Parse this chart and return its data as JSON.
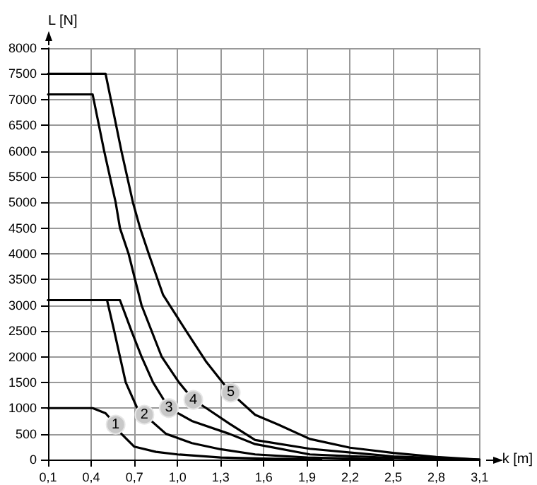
{
  "chart_data": {
    "type": "line",
    "xlabel": "k [m]",
    "ylabel": "L [N]",
    "xlim": [
      0.1,
      3.1
    ],
    "ylim": [
      0,
      8000
    ],
    "xticks": [
      {
        "value": 0.1,
        "label": "0,1"
      },
      {
        "value": 0.4,
        "label": "0,4"
      },
      {
        "value": 0.7,
        "label": "0,7"
      },
      {
        "value": 1.0,
        "label": "1,0"
      },
      {
        "value": 1.3,
        "label": "1,3"
      },
      {
        "value": 1.6,
        "label": "1,6"
      },
      {
        "value": 1.9,
        "label": "1,9"
      },
      {
        "value": 2.2,
        "label": "2,2"
      },
      {
        "value": 2.5,
        "label": "2,5"
      },
      {
        "value": 2.8,
        "label": "2,8"
      },
      {
        "value": 3.1,
        "label": "3,1"
      }
    ],
    "yticks": [
      0,
      500,
      1000,
      1500,
      2000,
      2500,
      3000,
      3500,
      4000,
      4500,
      5000,
      5500,
      6000,
      6500,
      7000,
      7500,
      8000
    ],
    "grid": true,
    "marker": "none",
    "line_style": "solid",
    "series": [
      {
        "color": "#000000",
        "x": [
          0.1,
          0.41,
          0.5,
          0.57,
          0.61,
          0.7,
          0.85,
          1.0,
          1.3,
          1.6,
          2.0
        ],
        "values": [
          1000,
          1000,
          900,
          680,
          500,
          250,
          150,
          100,
          40,
          20,
          0
        ]
      },
      {
        "color": "#000000",
        "x": [
          0.1,
          0.51,
          0.56,
          0.6,
          0.64,
          0.72,
          0.77,
          0.92,
          1.1,
          1.3,
          1.54,
          1.9,
          2.2,
          2.5
        ],
        "values": [
          3100,
          3100,
          2500,
          2000,
          1500,
          1000,
          870,
          500,
          320,
          200,
          100,
          40,
          20,
          0
        ]
      },
      {
        "color": "#000000",
        "x": [
          0.1,
          0.6,
          0.68,
          0.75,
          0.83,
          0.94,
          1.1,
          1.36,
          1.54,
          1.92,
          2.5,
          2.9
        ],
        "values": [
          3100,
          3100,
          2500,
          2000,
          1500,
          1000,
          750,
          500,
          300,
          100,
          30,
          0
        ]
      },
      {
        "color": "#000000",
        "x": [
          0.1,
          0.41,
          0.49,
          0.57,
          0.6,
          0.66,
          0.75,
          0.89,
          1.01,
          1.11,
          1.2,
          1.36,
          1.54,
          1.92,
          2.5,
          3.1
        ],
        "values": [
          7100,
          7100,
          6000,
          5000,
          4500,
          4000,
          3000,
          2000,
          1500,
          1160,
          1000,
          700,
          380,
          210,
          60,
          0
        ]
      },
      {
        "color": "#000000",
        "x": [
          0.1,
          0.5,
          0.61,
          0.69,
          0.74,
          0.8,
          0.9,
          1.06,
          1.2,
          1.37,
          1.54,
          1.7,
          1.92,
          2.2,
          2.5,
          2.8,
          3.1
        ],
        "values": [
          7500,
          7500,
          6000,
          5000,
          4500,
          4000,
          3200,
          2500,
          1900,
          1300,
          870,
          680,
          400,
          230,
          130,
          50,
          0
        ]
      }
    ],
    "annotations": [
      {
        "text": "1",
        "x": 0.57,
        "y": 680
      },
      {
        "text": "2",
        "x": 0.77,
        "y": 870
      },
      {
        "text": "3",
        "x": 0.94,
        "y": 1000
      },
      {
        "text": "4",
        "x": 1.11,
        "y": 1160
      },
      {
        "text": "5",
        "x": 1.37,
        "y": 1300
      }
    ]
  }
}
